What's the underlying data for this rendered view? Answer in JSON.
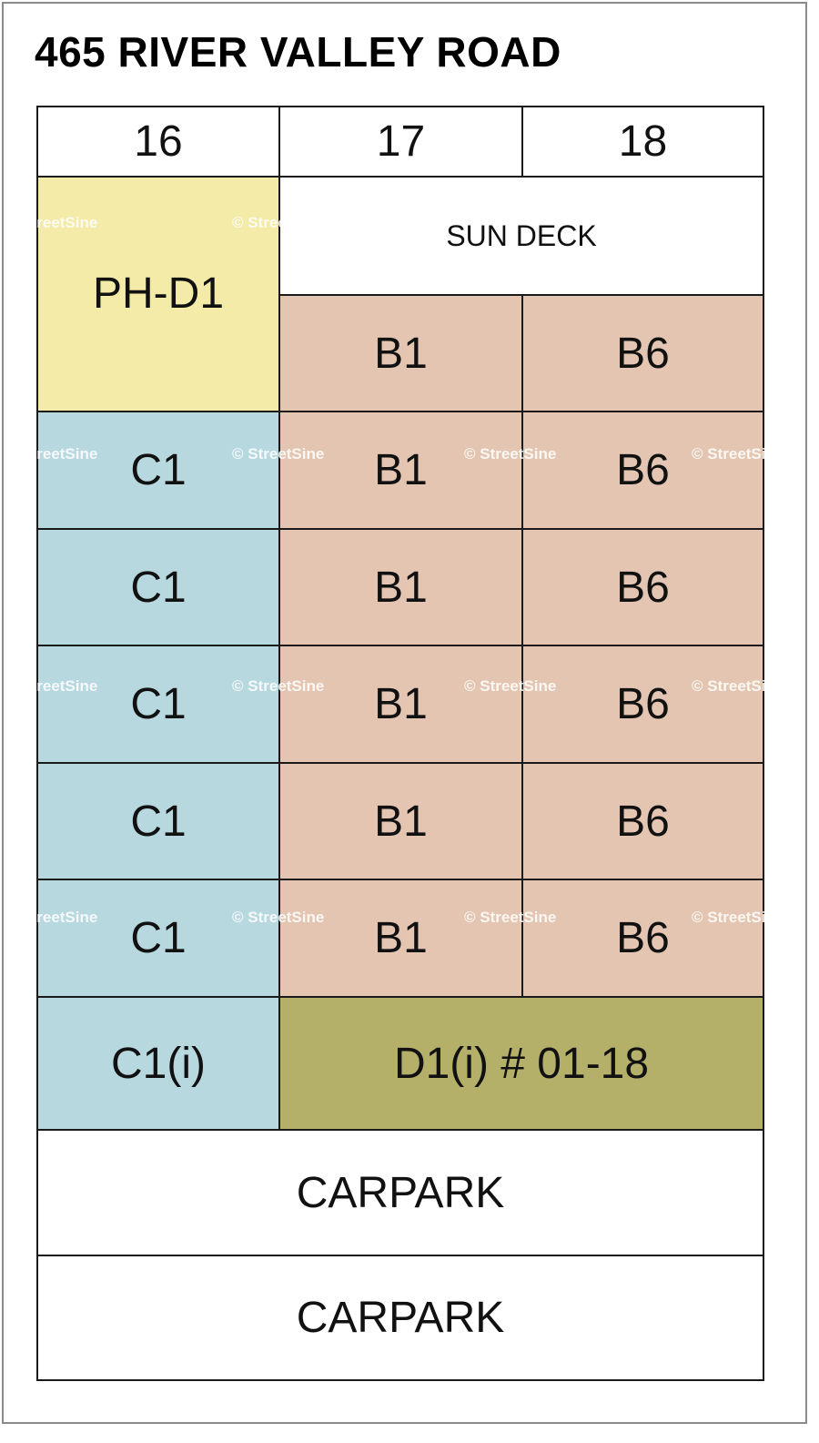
{
  "title": "465 RIVER VALLEY ROAD",
  "colors": {
    "penthouse": "#f3eba7",
    "type_c": "#b8d8e0",
    "type_b": "#e3c5b1",
    "type_d": "#b4b06a",
    "border": "#1a1a1a"
  },
  "columns": [
    "16",
    "17",
    "18"
  ],
  "top": {
    "ph": "PH-D1",
    "sun_deck": "SUN DECK"
  },
  "floors": [
    {
      "c16": "",
      "c17": "B1",
      "c18": "B6"
    },
    {
      "c16": "C1",
      "c17": "B1",
      "c18": "B6"
    },
    {
      "c16": "C1",
      "c17": "B1",
      "c18": "B6"
    },
    {
      "c16": "C1",
      "c17": "B1",
      "c18": "B6"
    },
    {
      "c16": "C1",
      "c17": "B1",
      "c18": "B6"
    },
    {
      "c16": "C1",
      "c17": "B1",
      "c18": "B6"
    }
  ],
  "ground": {
    "c16": "C1(i)",
    "c1718": "D1(i) # 01-18"
  },
  "carparks": [
    "CARPARK",
    "CARPARK"
  ],
  "watermark": "© StreetSine"
}
